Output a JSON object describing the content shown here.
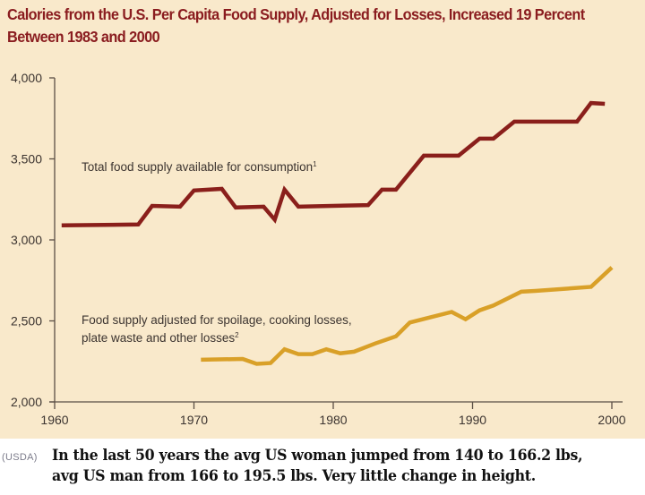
{
  "chart_data": {
    "type": "line",
    "title": "Calories from the U.S. Per Capita Food Supply, Adjusted for Losses, Increased 19 Percent Between 1983 and 2000",
    "xlabel": "",
    "ylabel": "",
    "xlim": [
      1960,
      2000
    ],
    "ylim": [
      2000,
      4000
    ],
    "x_ticks": [
      1960,
      1970,
      1980,
      1990,
      2000
    ],
    "x_tick_labels": [
      "1960",
      "1970",
      "1980",
      "1990",
      "2000"
    ],
    "y_ticks": [
      2000,
      2500,
      3000,
      3500,
      4000
    ],
    "y_tick_labels": [
      "2,000",
      "2,500",
      "3,000",
      "3,500",
      "4,000"
    ],
    "grid": false,
    "legend": "inline annotations",
    "series": [
      {
        "name": "Total food supply available for consumption",
        "footnote": "1",
        "color": "#8a1f1b",
        "x": [
          1960.5,
          1966,
          1967,
          1969,
          1970,
          1972,
          1973,
          1975,
          1975.8,
          1976.5,
          1977.5,
          1982.5,
          1983.5,
          1984.5,
          1986.5,
          1989,
          1990.5,
          1991.5,
          1993,
          1997.5,
          1998.5,
          1999.5
        ],
        "y": [
          3090,
          3095,
          3210,
          3205,
          3305,
          3315,
          3200,
          3205,
          3125,
          3310,
          3205,
          3215,
          3310,
          3310,
          3520,
          3520,
          3625,
          3625,
          3730,
          3730,
          3845,
          3840
        ]
      },
      {
        "name": "Food supply adjusted for spoilage, cooking losses, plate waste and other losses",
        "footnote": "2",
        "color": "#d9a028",
        "x": [
          1970.5,
          1973.5,
          1974.5,
          1975.5,
          1976.5,
          1977.5,
          1978.5,
          1979.5,
          1980.5,
          1981.5,
          1983,
          1984.5,
          1985.5,
          1988.5,
          1989.5,
          1990.5,
          1991.5,
          1993.5,
          1994.5,
          1998.5,
          2000
        ],
        "y": [
          2260,
          2265,
          2235,
          2240,
          2325,
          2295,
          2295,
          2325,
          2300,
          2310,
          2360,
          2405,
          2490,
          2555,
          2510,
          2565,
          2595,
          2680,
          2685,
          2710,
          2830
        ]
      }
    ],
    "annotations": [
      {
        "series": 0,
        "lines": [
          "Total food supply available for consumption"
        ],
        "sup": "1"
      },
      {
        "series": 1,
        "lines": [
          "Food supply adjusted for spoilage, cooking losses,",
          "plate waste and other losses"
        ],
        "sup": "2"
      }
    ]
  },
  "caption": {
    "source": "(USDA)",
    "line1": "In the last 50 years the avg US woman jumped from 140 to 166.2 lbs,",
    "line2": "avg US man from 166 to 195.5 lbs.  Very little change in height."
  }
}
